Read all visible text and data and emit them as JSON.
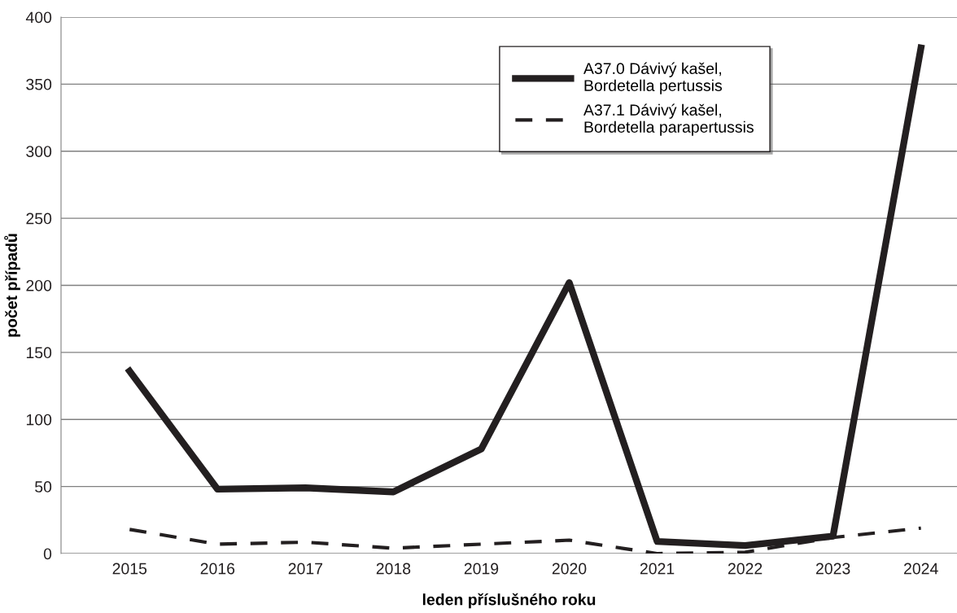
{
  "chart_data": {
    "type": "line",
    "xlabel": "leden příslušného roku",
    "ylabel": "počet případů",
    "categories": [
      "2015",
      "2016",
      "2017",
      "2018",
      "2019",
      "2020",
      "2021",
      "2022",
      "2023",
      "2024"
    ],
    "series": [
      {
        "name": "A37.0 Dávivý kašel,\nBordetella pertussis",
        "color": "#231f20",
        "line_style": "solid",
        "values": [
          136,
          48,
          49,
          46,
          78,
          202,
          9,
          6,
          13,
          377
        ]
      },
      {
        "name": "A37.1 Dávivý kašel,\nBordetella parapertussis",
        "color": "#231f20",
        "line_style": "dashed",
        "values": [
          18,
          7,
          8.5,
          4,
          7,
          10,
          0,
          1,
          12,
          19
        ]
      }
    ],
    "ylim": [
      0,
      400
    ],
    "yticks": [
      0,
      50,
      100,
      150,
      200,
      250,
      300,
      350,
      400
    ],
    "grid": "y",
    "legend": "top right",
    "marker": "none"
  }
}
